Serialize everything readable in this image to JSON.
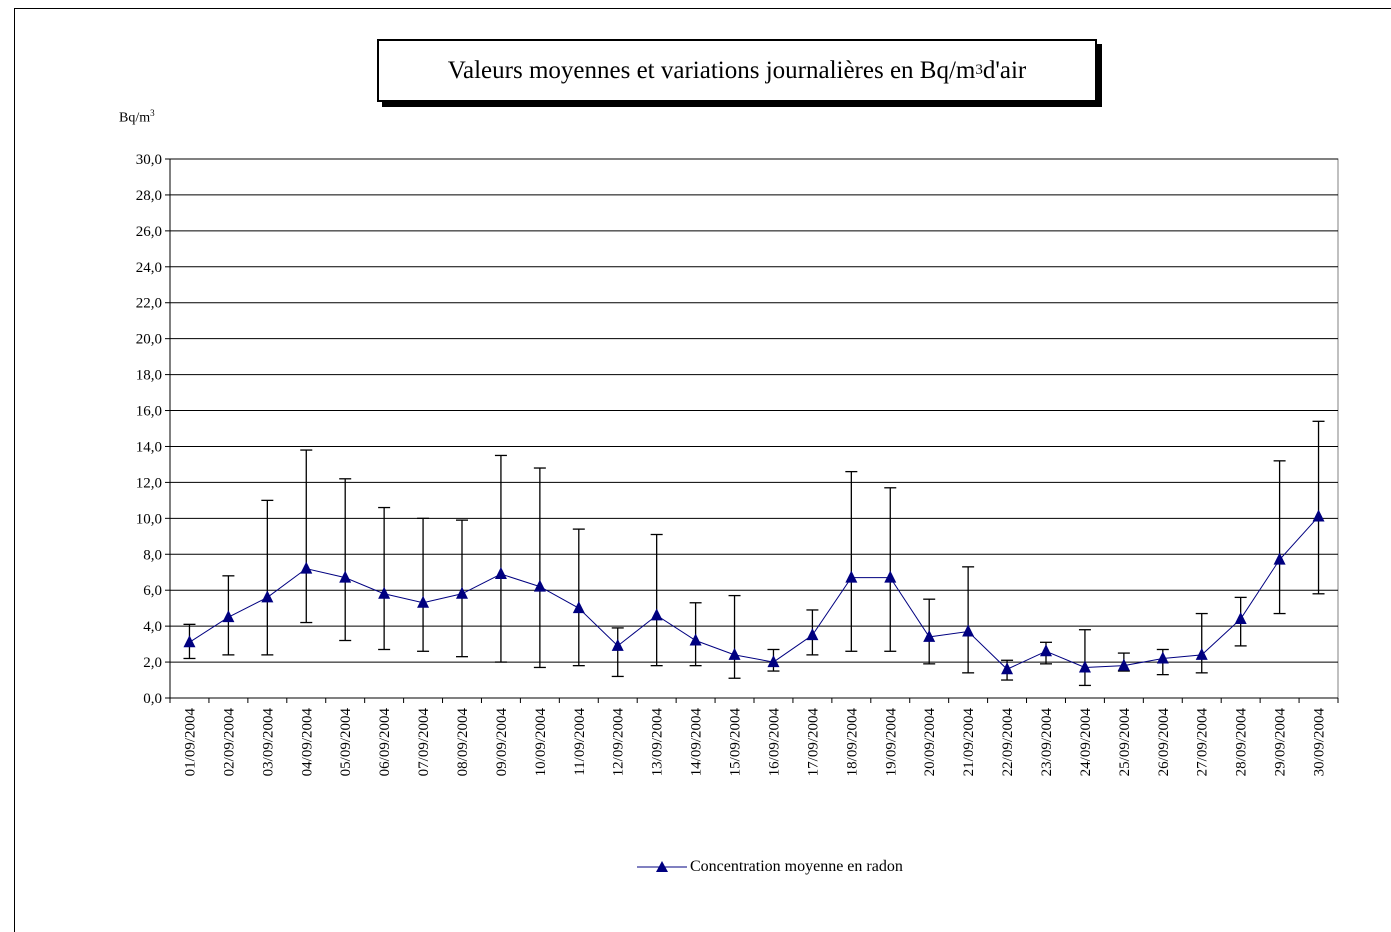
{
  "chart_data": {
    "type": "line",
    "title": {
      "prefix": "Valeurs moyennes et variations journalières en Bq/m",
      "sup": "3",
      "suffix": " d'air"
    },
    "ylabel": {
      "base": "Bq/m",
      "sup": "3"
    },
    "xlabel": "",
    "ylim": [
      0,
      30
    ],
    "y_ticks": [
      "0,0",
      "2,0",
      "4,0",
      "6,0",
      "8,0",
      "10,0",
      "12,0",
      "14,0",
      "16,0",
      "18,0",
      "20,0",
      "22,0",
      "24,0",
      "26,0",
      "28,0",
      "30,0"
    ],
    "grid": true,
    "legend_position": "bottom",
    "categories": [
      "01/09/2004",
      "02/09/2004",
      "03/09/2004",
      "04/09/2004",
      "05/09/2004",
      "06/09/2004",
      "07/09/2004",
      "08/09/2004",
      "09/09/2004",
      "10/09/2004",
      "11/09/2004",
      "12/09/2004",
      "13/09/2004",
      "14/09/2004",
      "15/09/2004",
      "16/09/2004",
      "17/09/2004",
      "18/09/2004",
      "19/09/2004",
      "20/09/2004",
      "21/09/2004",
      "22/09/2004",
      "23/09/2004",
      "24/09/2004",
      "25/09/2004",
      "26/09/2004",
      "27/09/2004",
      "28/09/2004",
      "29/09/2004",
      "30/09/2004"
    ],
    "series": [
      {
        "name": "Concentration moyenne en radon",
        "color": "#000080",
        "marker": "triangle",
        "values": [
          3.1,
          4.5,
          5.6,
          7.2,
          6.7,
          5.8,
          5.3,
          5.8,
          6.9,
          6.2,
          5.0,
          2.9,
          4.6,
          3.2,
          2.4,
          2.0,
          3.5,
          6.7,
          6.7,
          3.4,
          3.7,
          1.6,
          2.6,
          1.7,
          1.8,
          2.2,
          2.4,
          4.4,
          7.7,
          10.1
        ],
        "error_low": [
          2.2,
          2.4,
          2.4,
          4.2,
          3.2,
          2.7,
          2.6,
          2.3,
          2.0,
          1.7,
          1.8,
          1.2,
          1.8,
          1.8,
          1.1,
          1.5,
          2.4,
          2.6,
          2.6,
          1.9,
          1.4,
          1.0,
          1.9,
          0.7,
          1.5,
          1.3,
          1.4,
          2.9,
          4.7,
          5.8
        ],
        "error_high": [
          4.1,
          6.8,
          11.0,
          13.8,
          12.2,
          10.6,
          10.0,
          9.9,
          13.5,
          12.8,
          9.4,
          3.9,
          9.1,
          5.3,
          5.7,
          2.7,
          4.9,
          12.6,
          11.7,
          5.5,
          7.3,
          2.1,
          3.1,
          3.8,
          2.5,
          2.7,
          4.7,
          5.6,
          13.2,
          15.4
        ]
      }
    ]
  }
}
